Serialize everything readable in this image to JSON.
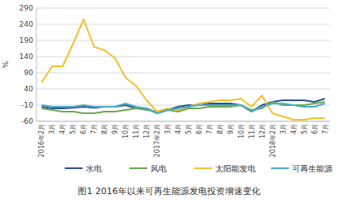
{
  "chart_data": {
    "type": "line",
    "title": "图1 2016年以来可再生能源发电投资增速变化",
    "y_label": "%",
    "categories": [
      "2016年2月",
      "3月",
      "4月",
      "5月",
      "6月",
      "7月",
      "8月",
      "9月",
      "10月",
      "11月",
      "12月",
      "2017年2月",
      "3月",
      "4月",
      "5月",
      "6月",
      "7月",
      "8月",
      "9月",
      "10月",
      "11月",
      "12月",
      "2018年2月",
      "3月",
      "4月",
      "5月",
      "6月",
      "7月"
    ],
    "series": [
      {
        "name": "水电",
        "color": "#2f4f8f",
        "values": [
          -15,
          -20,
          -20,
          -18,
          -15,
          -18,
          -15,
          -15,
          -10,
          -20,
          -20,
          -35,
          -25,
          -15,
          -10,
          -10,
          -5,
          -5,
          -5,
          -10,
          -30,
          -10,
          0,
          5,
          5,
          5,
          0,
          10
        ]
      },
      {
        "name": "风电",
        "color": "#6aa84f",
        "values": [
          -20,
          -25,
          -30,
          -30,
          -35,
          -35,
          -30,
          -30,
          -25,
          -20,
          -25,
          -30,
          -25,
          -30,
          -20,
          -20,
          -15,
          -15,
          -15,
          -10,
          -25,
          -20,
          0,
          -10,
          -10,
          -10,
          -5,
          0
        ]
      },
      {
        "name": "太阳能发电",
        "color": "#f2c12e",
        "values": [
          60,
          110,
          110,
          180,
          255,
          170,
          160,
          135,
          75,
          50,
          5,
          -30,
          -20,
          -25,
          -15,
          -5,
          0,
          5,
          5,
          10,
          -15,
          20,
          -35,
          -45,
          -55,
          -55,
          -50,
          -50
        ]
      },
      {
        "name": "可再生能源",
        "color": "#4bacc6",
        "values": [
          -10,
          -15,
          -15,
          -15,
          -10,
          -15,
          -15,
          -15,
          -5,
          -15,
          -20,
          -35,
          -25,
          -20,
          -15,
          -10,
          -10,
          -10,
          -10,
          -10,
          -30,
          -15,
          -5,
          -5,
          -10,
          -15,
          -15,
          -5
        ]
      }
    ],
    "ylim": [
      -60,
      290
    ],
    "yticks": [
      -60,
      -10,
      40,
      90,
      140,
      190,
      240,
      290
    ],
    "grid": true,
    "legend": "bottom"
  }
}
